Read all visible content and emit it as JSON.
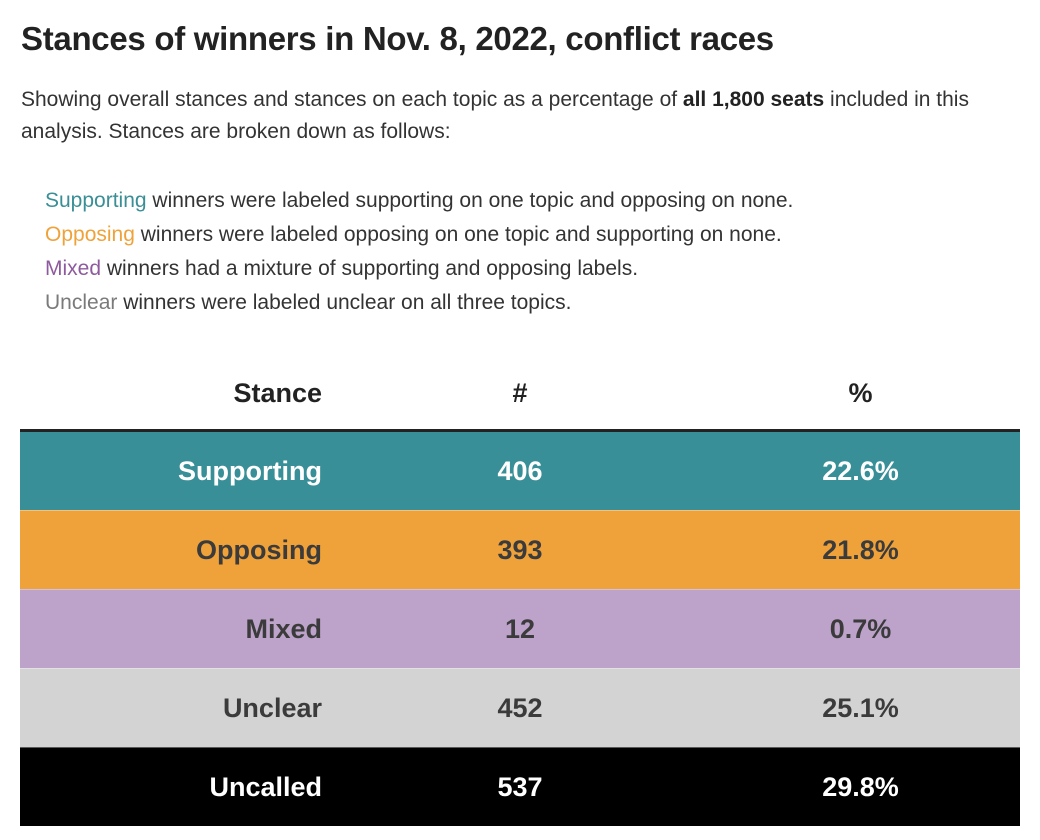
{
  "title": "Stances of winners in Nov. 8, 2022, conflict races",
  "subtitle": {
    "pre": "Showing overall stances and stances on each topic as a percentage of ",
    "bold": "all 1,800 seats",
    "post": " included in this analysis. Stances are broken down as follows:"
  },
  "legend": [
    {
      "keyword": "Supporting",
      "text": " winners were labeled supporting on one topic and opposing on none.",
      "color": "#3a8f96"
    },
    {
      "keyword": "Opposing",
      "text": " winners were labeled opposing on one topic and supporting on none.",
      "color": "#f0a23a"
    },
    {
      "keyword": "Mixed",
      "text": " winners had a mixture of supporting and opposing labels.",
      "color": "#8e5a9e"
    },
    {
      "keyword": "Unclear",
      "text": " winners were labeled unclear on all three topics.",
      "color": "#7a7a7a"
    }
  ],
  "colors": {
    "supporting": "#388f97",
    "opposing": "#f0a23a",
    "mixed": "#bda2ca",
    "unclear": "#d3d3d3",
    "uncalled": "#000000"
  },
  "chart_data": {
    "type": "table",
    "columns": [
      "Stance",
      "#",
      "%"
    ],
    "rows": [
      {
        "stance": "Supporting",
        "count": "406",
        "pct": "22.6%",
        "bg": "#388f97",
        "fg": "#ffffff"
      },
      {
        "stance": "Opposing",
        "count": "393",
        "pct": "21.8%",
        "bg": "#f0a23a",
        "fg": "#3b3b3b"
      },
      {
        "stance": "Mixed",
        "count": "12",
        "pct": "0.7%",
        "bg": "#bda2ca",
        "fg": "#3b3b3b"
      },
      {
        "stance": "Unclear",
        "count": "452",
        "pct": "25.1%",
        "bg": "#d3d3d3",
        "fg": "#3b3b3b"
      },
      {
        "stance": "Uncalled",
        "count": "537",
        "pct": "29.8%",
        "bg": "#000000",
        "fg": "#ffffff"
      }
    ]
  }
}
